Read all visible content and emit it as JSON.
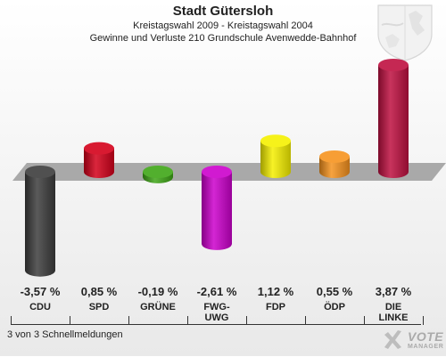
{
  "header": {
    "title": "Stadt Gütersloh",
    "subtitle1": "Kreistagswahl 2009 - Kreistagswahl 2004",
    "subtitle2": "Gewinne und Verluste 210 Grundschule Avenwedde-Bahnhof"
  },
  "footer": {
    "status": "3 von 3 Schnellmeldungen"
  },
  "brand": {
    "line1": "VOTE",
    "line2": "MANAGER"
  },
  "chart_data": {
    "type": "bar",
    "categories": [
      "CDU",
      "SPD",
      "GRÜNE",
      "FWG-UWG",
      "FDP",
      "ÖDP",
      "DIE LINKE"
    ],
    "category_labels": [
      [
        "CDU"
      ],
      [
        "SPD"
      ],
      [
        "GRÜNE"
      ],
      [
        "FWG-",
        "UWG"
      ],
      [
        "FDP"
      ],
      [
        "ÖDP"
      ],
      [
        "DIE",
        "LINKE"
      ]
    ],
    "values": [
      -3.57,
      0.85,
      -0.19,
      -2.61,
      1.12,
      0.55,
      3.87
    ],
    "value_labels": [
      "-3,57 %",
      "0,85 %",
      "-0,19 %",
      "-2,61 %",
      "1,12 %",
      "0,55 %",
      "3,87 %"
    ],
    "colors": [
      "#3d3d3d",
      "#d4001a",
      "#3fa617",
      "#cc00cc",
      "#f5f000",
      "#f6931e",
      "#be1040"
    ],
    "ylim": [
      -3.87,
      3.87
    ]
  }
}
